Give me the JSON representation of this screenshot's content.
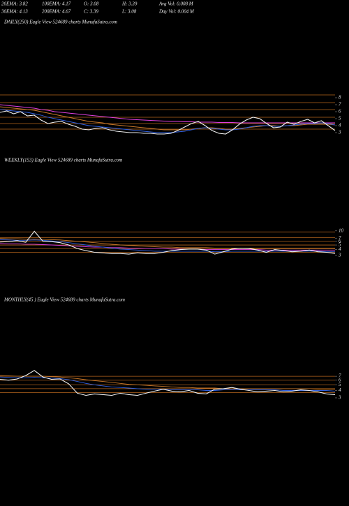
{
  "header": {
    "rows": [
      [
        "20EMA: 3.82",
        "100EMA: 4.17",
        "O: 3.08",
        "H: 3.39",
        "Avg Vol: 0.008  M"
      ],
      [
        "30EMA: 4.13",
        "200EMA: 4.67",
        "C: 3.39",
        "L: 3.08",
        "Day Vol: 0.004  M"
      ]
    ]
  },
  "chart_data": [
    {
      "type": "line",
      "title": "DAILY(250) Eagle   View  524689 charts MunafaSutra.com",
      "log_scale": false,
      "ylim": [
        2.5,
        9
      ],
      "yticks": [
        8,
        7,
        6,
        5,
        4,
        3
      ],
      "levels": [
        8.4,
        7.3,
        6.3,
        5.2,
        4.3,
        3.5
      ],
      "level_color": "#b5651d",
      "series": [
        {
          "color": "#f0f0f0",
          "values": [
            5.9,
            6.1,
            5.7,
            6.0,
            5.4,
            5.5,
            4.8,
            4.3,
            4.5,
            4.6,
            4.2,
            3.9,
            3.5,
            3.4,
            3.6,
            3.7,
            3.4,
            3.2,
            3.1,
            3.0,
            3.0,
            2.9,
            2.9,
            2.8,
            2.8,
            2.9,
            3.3,
            3.8,
            4.3,
            4.6,
            4.0,
            3.3,
            2.9,
            2.8,
            3.4,
            4.2,
            4.8,
            5.2,
            5.0,
            4.3,
            3.7,
            3.8,
            4.5,
            4.2,
            4.6,
            4.9,
            4.4,
            4.7,
            4.0,
            3.3
          ]
        },
        {
          "color": "#2f5fe0",
          "values": [
            6.3,
            6.2,
            6.1,
            6.0,
            5.9,
            5.7,
            5.5,
            5.2,
            5.0,
            4.8,
            4.6,
            4.4,
            4.2,
            4.0,
            3.9,
            3.8,
            3.7,
            3.6,
            3.5,
            3.4,
            3.3,
            3.2,
            3.1,
            3.0,
            3.0,
            3.0,
            3.1,
            3.2,
            3.4,
            3.6,
            3.7,
            3.6,
            3.5,
            3.4,
            3.4,
            3.5,
            3.7,
            3.9,
            4.0,
            4.0,
            3.9,
            3.9,
            4.0,
            4.1,
            4.2,
            4.3,
            4.3,
            4.4,
            4.3,
            4.1
          ]
        },
        {
          "color": "#c8782a",
          "values": [
            6.7,
            6.6,
            6.5,
            6.4,
            6.3,
            6.2,
            6.0,
            5.8,
            5.6,
            5.4,
            5.2,
            5.0,
            4.8,
            4.6,
            4.5,
            4.4,
            4.2,
            4.1,
            4.0,
            3.9,
            3.8,
            3.7,
            3.6,
            3.5,
            3.4,
            3.4,
            3.4,
            3.4,
            3.5,
            3.6,
            3.7,
            3.7,
            3.6,
            3.5,
            3.5,
            3.6,
            3.7,
            3.8,
            3.9,
            4.0,
            4.0,
            3.9,
            4.0,
            4.0,
            4.1,
            4.2,
            4.2,
            4.2,
            4.2,
            4.1
          ]
        },
        {
          "color": "#e040e0",
          "values": [
            7.0,
            6.9,
            6.8,
            6.7,
            6.6,
            6.5,
            6.3,
            6.2,
            6.0,
            5.9,
            5.8,
            5.7,
            5.6,
            5.5,
            5.4,
            5.3,
            5.2,
            5.1,
            5.0,
            4.9,
            4.85,
            4.8,
            4.75,
            4.7,
            4.65,
            4.6,
            4.6,
            4.55,
            4.55,
            4.5,
            4.5,
            4.5,
            4.45,
            4.45,
            4.45,
            4.4,
            4.4,
            4.4,
            4.4,
            4.4,
            4.4,
            4.4,
            4.4,
            4.4,
            4.4,
            4.4,
            4.4,
            4.4,
            4.4,
            4.4
          ]
        }
      ]
    },
    {
      "type": "line",
      "title": "WEEKLY(153) Eagle   View  524689 charts MunafaSutra.com",
      "log_scale": true,
      "ylim": [
        2.8,
        11
      ],
      "yticks": [
        10,
        7,
        6,
        5,
        4,
        3
      ],
      "levels": [
        9.5,
        7.2,
        6.0,
        5.0,
        4.2,
        3.5
      ],
      "level_color": "#b5651d",
      "series": [
        {
          "color": "#f0f0f0",
          "values": [
            5.8,
            5.9,
            6.2,
            5.7,
            9.8,
            6.0,
            5.9,
            5.6,
            5.0,
            4.2,
            3.8,
            3.5,
            3.4,
            3.3,
            3.3,
            3.2,
            3.4,
            3.3,
            3.3,
            3.5,
            3.8,
            4.0,
            4.1,
            4.1,
            3.9,
            3.2,
            3.6,
            4.1,
            4.3,
            4.2,
            3.9,
            3.5,
            4.0,
            3.8,
            3.6,
            3.7,
            3.9,
            3.6,
            3.5,
            3.3
          ]
        },
        {
          "color": "#2f5fe0",
          "values": [
            6.5,
            6.4,
            6.3,
            6.3,
            6.4,
            6.3,
            6.1,
            5.9,
            5.6,
            5.3,
            5.0,
            4.7,
            4.5,
            4.3,
            4.1,
            4.0,
            3.9,
            3.8,
            3.7,
            3.7,
            3.7,
            3.7,
            3.7,
            3.7,
            3.7,
            3.6,
            3.6,
            3.7,
            3.7,
            3.7,
            3.7,
            3.7,
            3.7,
            3.7,
            3.7,
            3.7,
            3.7,
            3.7,
            3.6,
            3.6
          ]
        },
        {
          "color": "#c8782a",
          "values": [
            6.9,
            6.8,
            6.8,
            6.7,
            6.7,
            6.6,
            6.5,
            6.4,
            6.2,
            6.0,
            5.8,
            5.6,
            5.4,
            5.2,
            5.0,
            4.9,
            4.8,
            4.7,
            4.6,
            4.5,
            4.5,
            4.4,
            4.4,
            4.4,
            4.4,
            4.3,
            4.3,
            4.3,
            4.3,
            4.3,
            4.3,
            4.3,
            4.3,
            4.3,
            4.3,
            4.3,
            4.3,
            4.3,
            4.3,
            4.3
          ]
        },
        {
          "color": "#e040e0",
          "values": [
            5.4,
            5.3,
            5.3,
            5.2,
            5.2,
            5.1,
            5.0,
            4.9,
            4.8,
            4.7,
            4.6,
            4.5,
            4.5,
            4.4,
            4.4,
            4.3,
            4.3,
            4.2,
            4.2,
            4.2,
            4.1,
            4.1,
            4.1,
            4.1,
            4.0,
            4.0,
            4.0,
            4.0,
            4.0,
            4.0,
            4.0,
            3.9,
            3.9,
            3.9,
            3.9,
            3.9,
            3.9,
            3.9,
            3.9,
            3.9
          ]
        }
      ]
    },
    {
      "type": "line",
      "title": "MONTHLY(45                    ) Eagle   View  524689 charts MunafaSutra.com",
      "log_scale": true,
      "ylim": [
        3,
        9.5
      ],
      "yticks": [
        7,
        6,
        5,
        4,
        3
      ],
      "levels": [
        7.0,
        6.0,
        5.0,
        4.3,
        3.7
      ],
      "level_color": "#b5651d",
      "series": [
        {
          "color": "#f0f0f0",
          "values": [
            6.2,
            6.0,
            6.3,
            7.2,
            8.8,
            6.8,
            6.2,
            6.3,
            5.2,
            3.6,
            3.3,
            3.5,
            3.4,
            3.3,
            3.6,
            3.4,
            3.3,
            3.6,
            3.9,
            4.2,
            3.9,
            3.8,
            4.0,
            3.6,
            3.5,
            4.2,
            4.3,
            4.5,
            4.2,
            4.0,
            3.8,
            3.9,
            4.0,
            3.8,
            3.9,
            4.1,
            4.0,
            3.8,
            3.5,
            3.4
          ]
        },
        {
          "color": "#2f5fe0",
          "values": [
            6.8,
            6.7,
            6.6,
            6.6,
            6.7,
            6.6,
            6.5,
            6.4,
            6.1,
            5.7,
            5.3,
            5.0,
            4.8,
            4.6,
            4.5,
            4.4,
            4.3,
            4.2,
            4.2,
            4.2,
            4.1,
            4.1,
            4.1,
            4.1,
            4.0,
            4.0,
            4.1,
            4.1,
            4.1,
            4.1,
            4.1,
            4.1,
            4.1,
            4.0,
            4.0,
            4.0,
            4.0,
            4.0,
            4.0,
            3.9
          ]
        },
        {
          "color": "#c8782a",
          "values": [
            7.2,
            7.1,
            7.0,
            7.0,
            7.0,
            7.0,
            6.9,
            6.8,
            6.6,
            6.4,
            6.1,
            5.9,
            5.7,
            5.5,
            5.3,
            5.1,
            5.0,
            4.9,
            4.8,
            4.7,
            4.6,
            4.5,
            4.5,
            4.4,
            4.4,
            4.4,
            4.3,
            4.3,
            4.3,
            4.3,
            4.3,
            4.3,
            4.3,
            4.3,
            4.3,
            4.3,
            4.3,
            4.2,
            4.2,
            4.2
          ]
        }
      ]
    }
  ]
}
